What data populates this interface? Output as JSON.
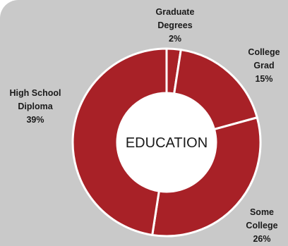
{
  "chart_data": {
    "type": "pie",
    "variant": "donut",
    "center_label": "EDUCATION",
    "slices": [
      {
        "label": [
          "Graduate",
          "Degrees"
        ],
        "value": 2,
        "display": "2%"
      },
      {
        "label": [
          "College",
          "Grad"
        ],
        "value": 15,
        "display": "15%"
      },
      {
        "label": [
          "Some",
          "College"
        ],
        "value": 26,
        "display": "26%"
      },
      {
        "label": [
          "High School",
          "Diploma"
        ],
        "value": 39,
        "display": "39%"
      }
    ],
    "colors": {
      "slice": "#a82127",
      "separator": "#ffffff",
      "hole": "#ffffff",
      "background": "#c9c9c9",
      "text": "#1a1a1a"
    }
  }
}
